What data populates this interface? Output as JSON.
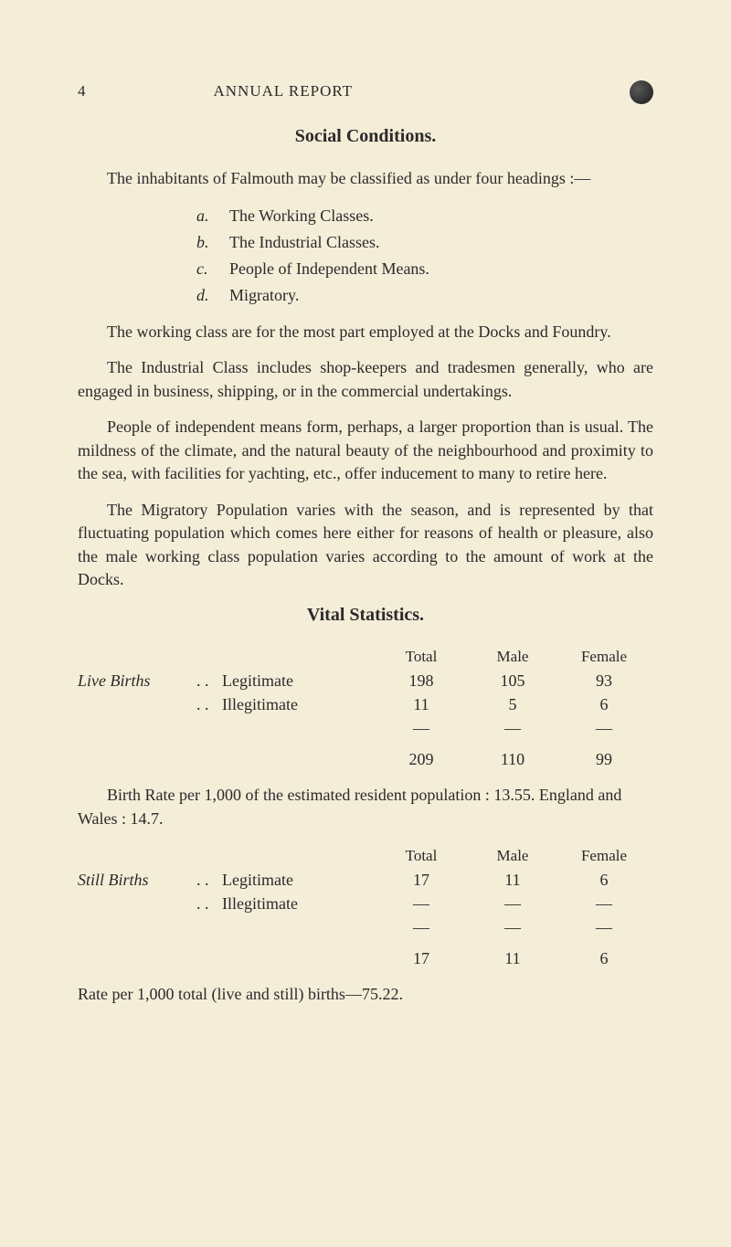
{
  "page_number": "4",
  "report_title": "ANNUAL REPORT",
  "section1": {
    "title": "Social Conditions.",
    "para1": "The inhabitants of Falmouth may be classified as under four headings :—",
    "list": [
      {
        "letter": "a.",
        "text": "The Working Classes."
      },
      {
        "letter": "b.",
        "text": "The Industrial Classes."
      },
      {
        "letter": "c.",
        "text": "People of Independent Means."
      },
      {
        "letter": "d.",
        "text": "Migratory."
      }
    ],
    "para2": "The working class are for the most part employed at the Docks and Foundry.",
    "para3": "The Industrial Class includes shop-keepers and tradesmen generally, who are engaged in business, shipping, or in the commercial undertakings.",
    "para4": "People of independent means form, perhaps, a larger proportion than is usual. The mildness of the climate, and the natural beauty of the neighbourhood and proximity to the sea, with facilities for yachting, etc., offer inducement to many to retire here.",
    "para5": "The Migratory Population varies with the season, and is represented by that fluctuating population which comes here either for reasons of health or pleasure, also the male working class population varies according to the amount of work at the Docks."
  },
  "section2": {
    "title": "Vital Statistics.",
    "headers": {
      "total": "Total",
      "male": "Male",
      "female": "Female"
    },
    "live_births": {
      "label": "Live Births",
      "dots": ". .",
      "rows": [
        {
          "desc": "Legitimate",
          "total": "198",
          "male": "105",
          "female": "93"
        },
        {
          "desc": "Illegitimate",
          "total": "11",
          "male": "5",
          "female": "6"
        }
      ],
      "sum": {
        "total": "209",
        "male": "110",
        "female": "99"
      }
    },
    "birth_rate_text": "Birth Rate per 1,000 of the estimated resident population : 13.55.  England and Wales : 14.7.",
    "still_births": {
      "label": "Still Births",
      "dots": ". .",
      "rows": [
        {
          "desc": "Legitimate",
          "total": "17",
          "male": "11",
          "female": "6"
        },
        {
          "desc": "Illegitimate",
          "total": "—",
          "male": "—",
          "female": "—"
        }
      ],
      "sum": {
        "total": "17",
        "male": "11",
        "female": "6"
      }
    },
    "rate_per_text": "Rate per 1,000 total (live and still) births—75.22."
  },
  "dash": "—"
}
